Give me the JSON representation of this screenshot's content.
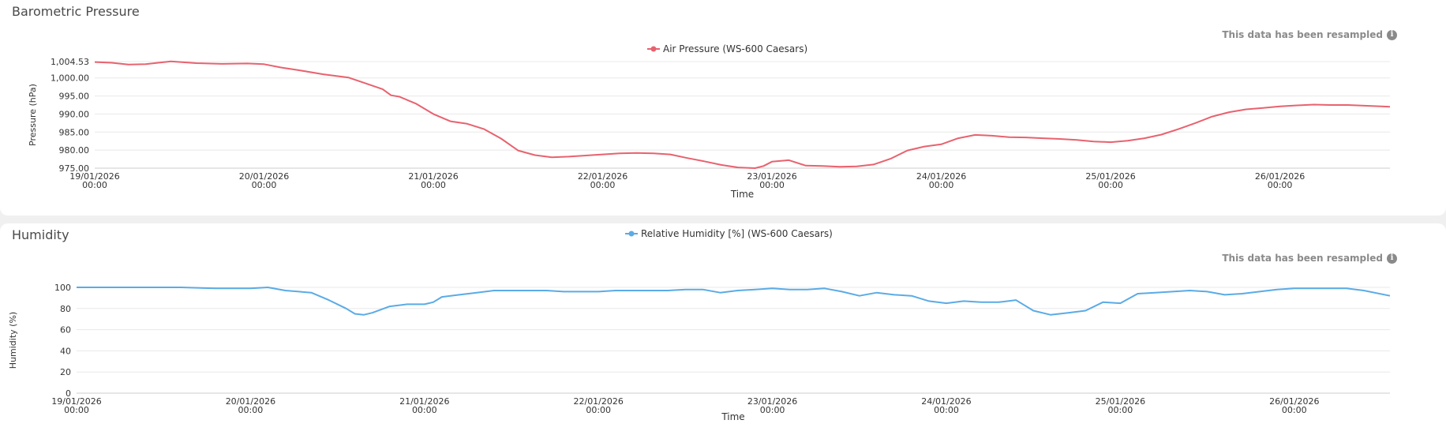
{
  "panels": [
    {
      "title": "Barometric Pressure",
      "resampled_note": "This data has been resampled",
      "info_icon": "info-icon"
    },
    {
      "title": "Humidity",
      "resampled_note": "This data has been resampled",
      "info_icon": "info-icon"
    }
  ],
  "chart_data": [
    {
      "type": "line",
      "title": "Barometric Pressure",
      "xlabel": "Time",
      "ylabel": "Pressure (hPa)",
      "ylim": [
        975.0,
        1004.53
      ],
      "yticks": [
        975.0,
        980.0,
        985.0,
        990.0,
        995.0,
        1000.0,
        1004.53
      ],
      "ytick_labels": [
        "975.00",
        "980.00",
        "985.00",
        "990.00",
        "995.00",
        "1,000.00",
        "1,004.53"
      ],
      "xlim": [
        0,
        7.65
      ],
      "xticks": [
        0,
        1,
        2,
        3,
        4,
        5,
        6,
        7
      ],
      "xtick_dates": [
        "19/01/2026",
        "20/01/2026",
        "21/01/2026",
        "22/01/2026",
        "23/01/2026",
        "24/01/2026",
        "25/01/2026",
        "26/01/2026"
      ],
      "xtick_times": [
        "00:00",
        "00:00",
        "00:00",
        "00:00",
        "00:00",
        "00:00",
        "00:00",
        "00:00"
      ],
      "legend": "top-center",
      "color": "#e8626e",
      "series": [
        {
          "name": "Air Pressure (WS-600 Caesars)",
          "x": [
            0,
            0.1,
            0.2,
            0.3,
            0.45,
            0.6,
            0.75,
            0.9,
            1.0,
            1.1,
            1.2,
            1.35,
            1.5,
            1.6,
            1.7,
            1.75,
            1.8,
            1.9,
            2.0,
            2.1,
            2.2,
            2.3,
            2.4,
            2.5,
            2.6,
            2.7,
            2.8,
            2.9,
            3.0,
            3.1,
            3.2,
            3.3,
            3.4,
            3.5,
            3.6,
            3.7,
            3.8,
            3.9,
            3.95,
            4.0,
            4.1,
            4.2,
            4.3,
            4.4,
            4.5,
            4.6,
            4.7,
            4.8,
            4.9,
            5.0,
            5.1,
            5.2,
            5.3,
            5.4,
            5.5,
            5.6,
            5.7,
            5.8,
            5.9,
            6.0,
            6.1,
            6.2,
            6.3,
            6.4,
            6.5,
            6.6,
            6.7,
            6.8,
            6.9,
            7.0,
            7.1,
            7.2,
            7.3,
            7.4,
            7.5,
            7.6,
            7.65
          ],
          "y": [
            1004.4,
            1004.2,
            1003.7,
            1003.8,
            1004.6,
            1004.1,
            1003.9,
            1004.0,
            1003.8,
            1002.9,
            1002.2,
            1001.0,
            1000.1,
            998.5,
            996.9,
            995.2,
            994.8,
            992.8,
            990.0,
            988.0,
            987.3,
            985.8,
            983.2,
            979.9,
            978.6,
            978.0,
            978.2,
            978.5,
            978.8,
            979.1,
            979.2,
            979.1,
            978.8,
            977.8,
            976.9,
            975.9,
            975.2,
            975.0,
            975.6,
            976.8,
            977.2,
            975.7,
            975.6,
            975.4,
            975.5,
            976.0,
            977.6,
            979.9,
            981.0,
            981.6,
            983.3,
            984.2,
            984.0,
            983.6,
            983.5,
            983.3,
            983.1,
            982.8,
            982.4,
            982.2,
            982.6,
            983.3,
            984.3,
            985.8,
            987.5,
            989.3,
            990.5,
            991.3,
            991.7,
            992.1,
            992.4,
            992.6,
            992.5,
            992.5,
            992.3,
            992.1,
            992.0
          ]
        }
      ]
    },
    {
      "type": "line",
      "title": "Humidity",
      "xlabel": "Time",
      "ylabel": "Humidity (%)",
      "ylim": [
        0,
        100
      ],
      "yticks": [
        0,
        20,
        40,
        60,
        80,
        100
      ],
      "ytick_labels": [
        "0",
        "20",
        "40",
        "60",
        "80",
        "100"
      ],
      "xlim": [
        0,
        7.55
      ],
      "xticks": [
        0,
        1,
        2,
        3,
        4,
        5,
        6,
        7
      ],
      "xtick_dates": [
        "19/01/2026",
        "20/01/2026",
        "21/01/2026",
        "22/01/2026",
        "23/01/2026",
        "24/01/2026",
        "25/01/2026",
        "26/01/2026"
      ],
      "xtick_times": [
        "00:00",
        "00:00",
        "00:00",
        "00:00",
        "00:00",
        "00:00",
        "00:00",
        "00:00"
      ],
      "legend": "top-center",
      "color": "#5aabe6",
      "series": [
        {
          "name": "Relative Humidity [%] (WS-600 Caesars)",
          "x": [
            0,
            0.2,
            0.4,
            0.6,
            0.8,
            1.0,
            1.1,
            1.2,
            1.35,
            1.45,
            1.55,
            1.6,
            1.65,
            1.7,
            1.8,
            1.9,
            2.0,
            2.05,
            2.1,
            2.2,
            2.3,
            2.4,
            2.5,
            2.6,
            2.7,
            2.8,
            2.9,
            3.0,
            3.1,
            3.2,
            3.3,
            3.4,
            3.5,
            3.6,
            3.7,
            3.8,
            3.9,
            4.0,
            4.1,
            4.2,
            4.3,
            4.4,
            4.5,
            4.6,
            4.7,
            4.8,
            4.9,
            5.0,
            5.1,
            5.2,
            5.3,
            5.4,
            5.45,
            5.5,
            5.6,
            5.65,
            5.7,
            5.8,
            5.9,
            6.0,
            6.1,
            6.2,
            6.3,
            6.4,
            6.5,
            6.6,
            6.7,
            6.8,
            6.9,
            7.0,
            7.1,
            7.2,
            7.3,
            7.4,
            7.55
          ],
          "y": [
            100,
            100,
            100,
            100,
            99,
            99,
            100,
            97,
            95,
            88,
            80,
            75,
            74,
            76,
            82,
            84,
            84,
            86,
            91,
            93,
            95,
            97,
            97,
            97,
            97,
            96,
            96,
            96,
            97,
            97,
            97,
            97,
            98,
            98,
            95,
            97,
            98,
            99,
            98,
            98,
            99,
            96,
            92,
            95,
            93,
            92,
            87,
            85,
            87,
            86,
            86,
            88,
            83,
            78,
            74,
            75,
            76,
            78,
            86,
            85,
            94,
            95,
            96,
            97,
            96,
            93,
            94,
            96,
            98,
            99,
            99,
            99,
            99,
            97,
            92
          ]
        }
      ]
    }
  ]
}
